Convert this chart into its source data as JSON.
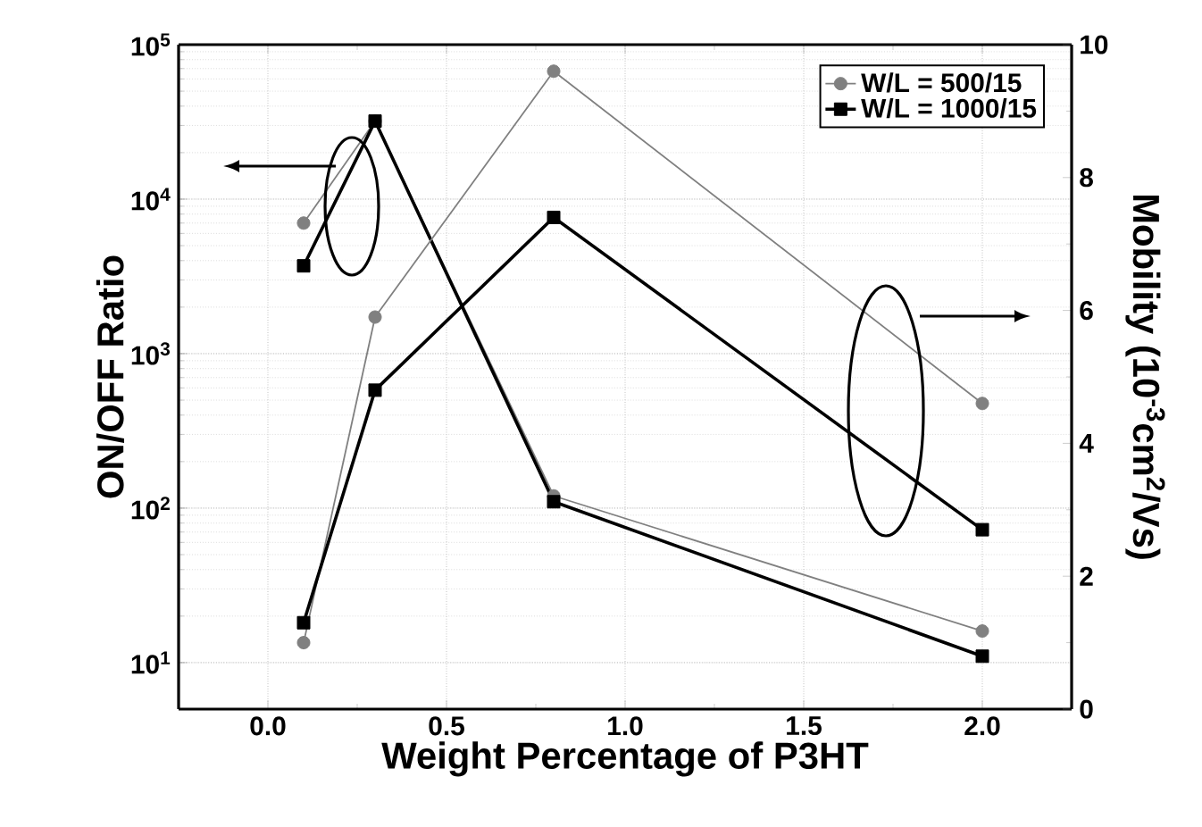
{
  "chart_data": {
    "type": "line",
    "xlabel": "Weight Percentage of P3HT",
    "ylabel": "ON/OFF Ratio",
    "y2label": "Mobility (10$^{-3}$cm$^{2}$/Vs)",
    "x": [
      0.1,
      0.3,
      0.8,
      2.0
    ],
    "xlim": [
      -0.25,
      2.25
    ],
    "xticks": [
      {
        "value": 0,
        "label": "0.0"
      },
      {
        "value": 0.5,
        "label": "0.5"
      },
      {
        "value": 1,
        "label": "1.0"
      },
      {
        "value": 1.5,
        "label": "1.5"
      },
      {
        "value": 2,
        "label": "2.0"
      }
    ],
    "ylim": [
      5,
      100000
    ],
    "yticks": [
      {
        "value": 10,
        "label": "10$^{1}$"
      },
      {
        "value": 100,
        "label": "10$^{2}$"
      },
      {
        "value": 1000,
        "label": "10$^{3}$"
      },
      {
        "value": 10000,
        "label": "10$^{4}$"
      },
      {
        "value": 100000,
        "label": "10$^{5}$"
      }
    ],
    "y2lim": [
      0,
      10
    ],
    "y2ticks": [
      0,
      2,
      4,
      6,
      8,
      10
    ],
    "log": "y",
    "grid": true,
    "legend": "top right",
    "series": [
      {
        "name": "W/L = 500/15",
        "color": "#808080",
        "marker": "circle",
        "values": [
          7000,
          32000,
          120,
          16
        ]
      },
      {
        "name": "W/L = 1000/15",
        "color": "#000000",
        "marker": "square",
        "values": [
          3700,
          32000,
          110,
          11
        ]
      },
      {
        "color": "#808080",
        "marker": "circle",
        "axis": "y2",
        "values": [
          1.0,
          5.9,
          9.6,
          4.6
        ]
      },
      {
        "color": "#000000",
        "marker": "square",
        "axis": "y2",
        "values": [
          1.3,
          4.8,
          7.4,
          2.7
        ]
      }
    ]
  }
}
